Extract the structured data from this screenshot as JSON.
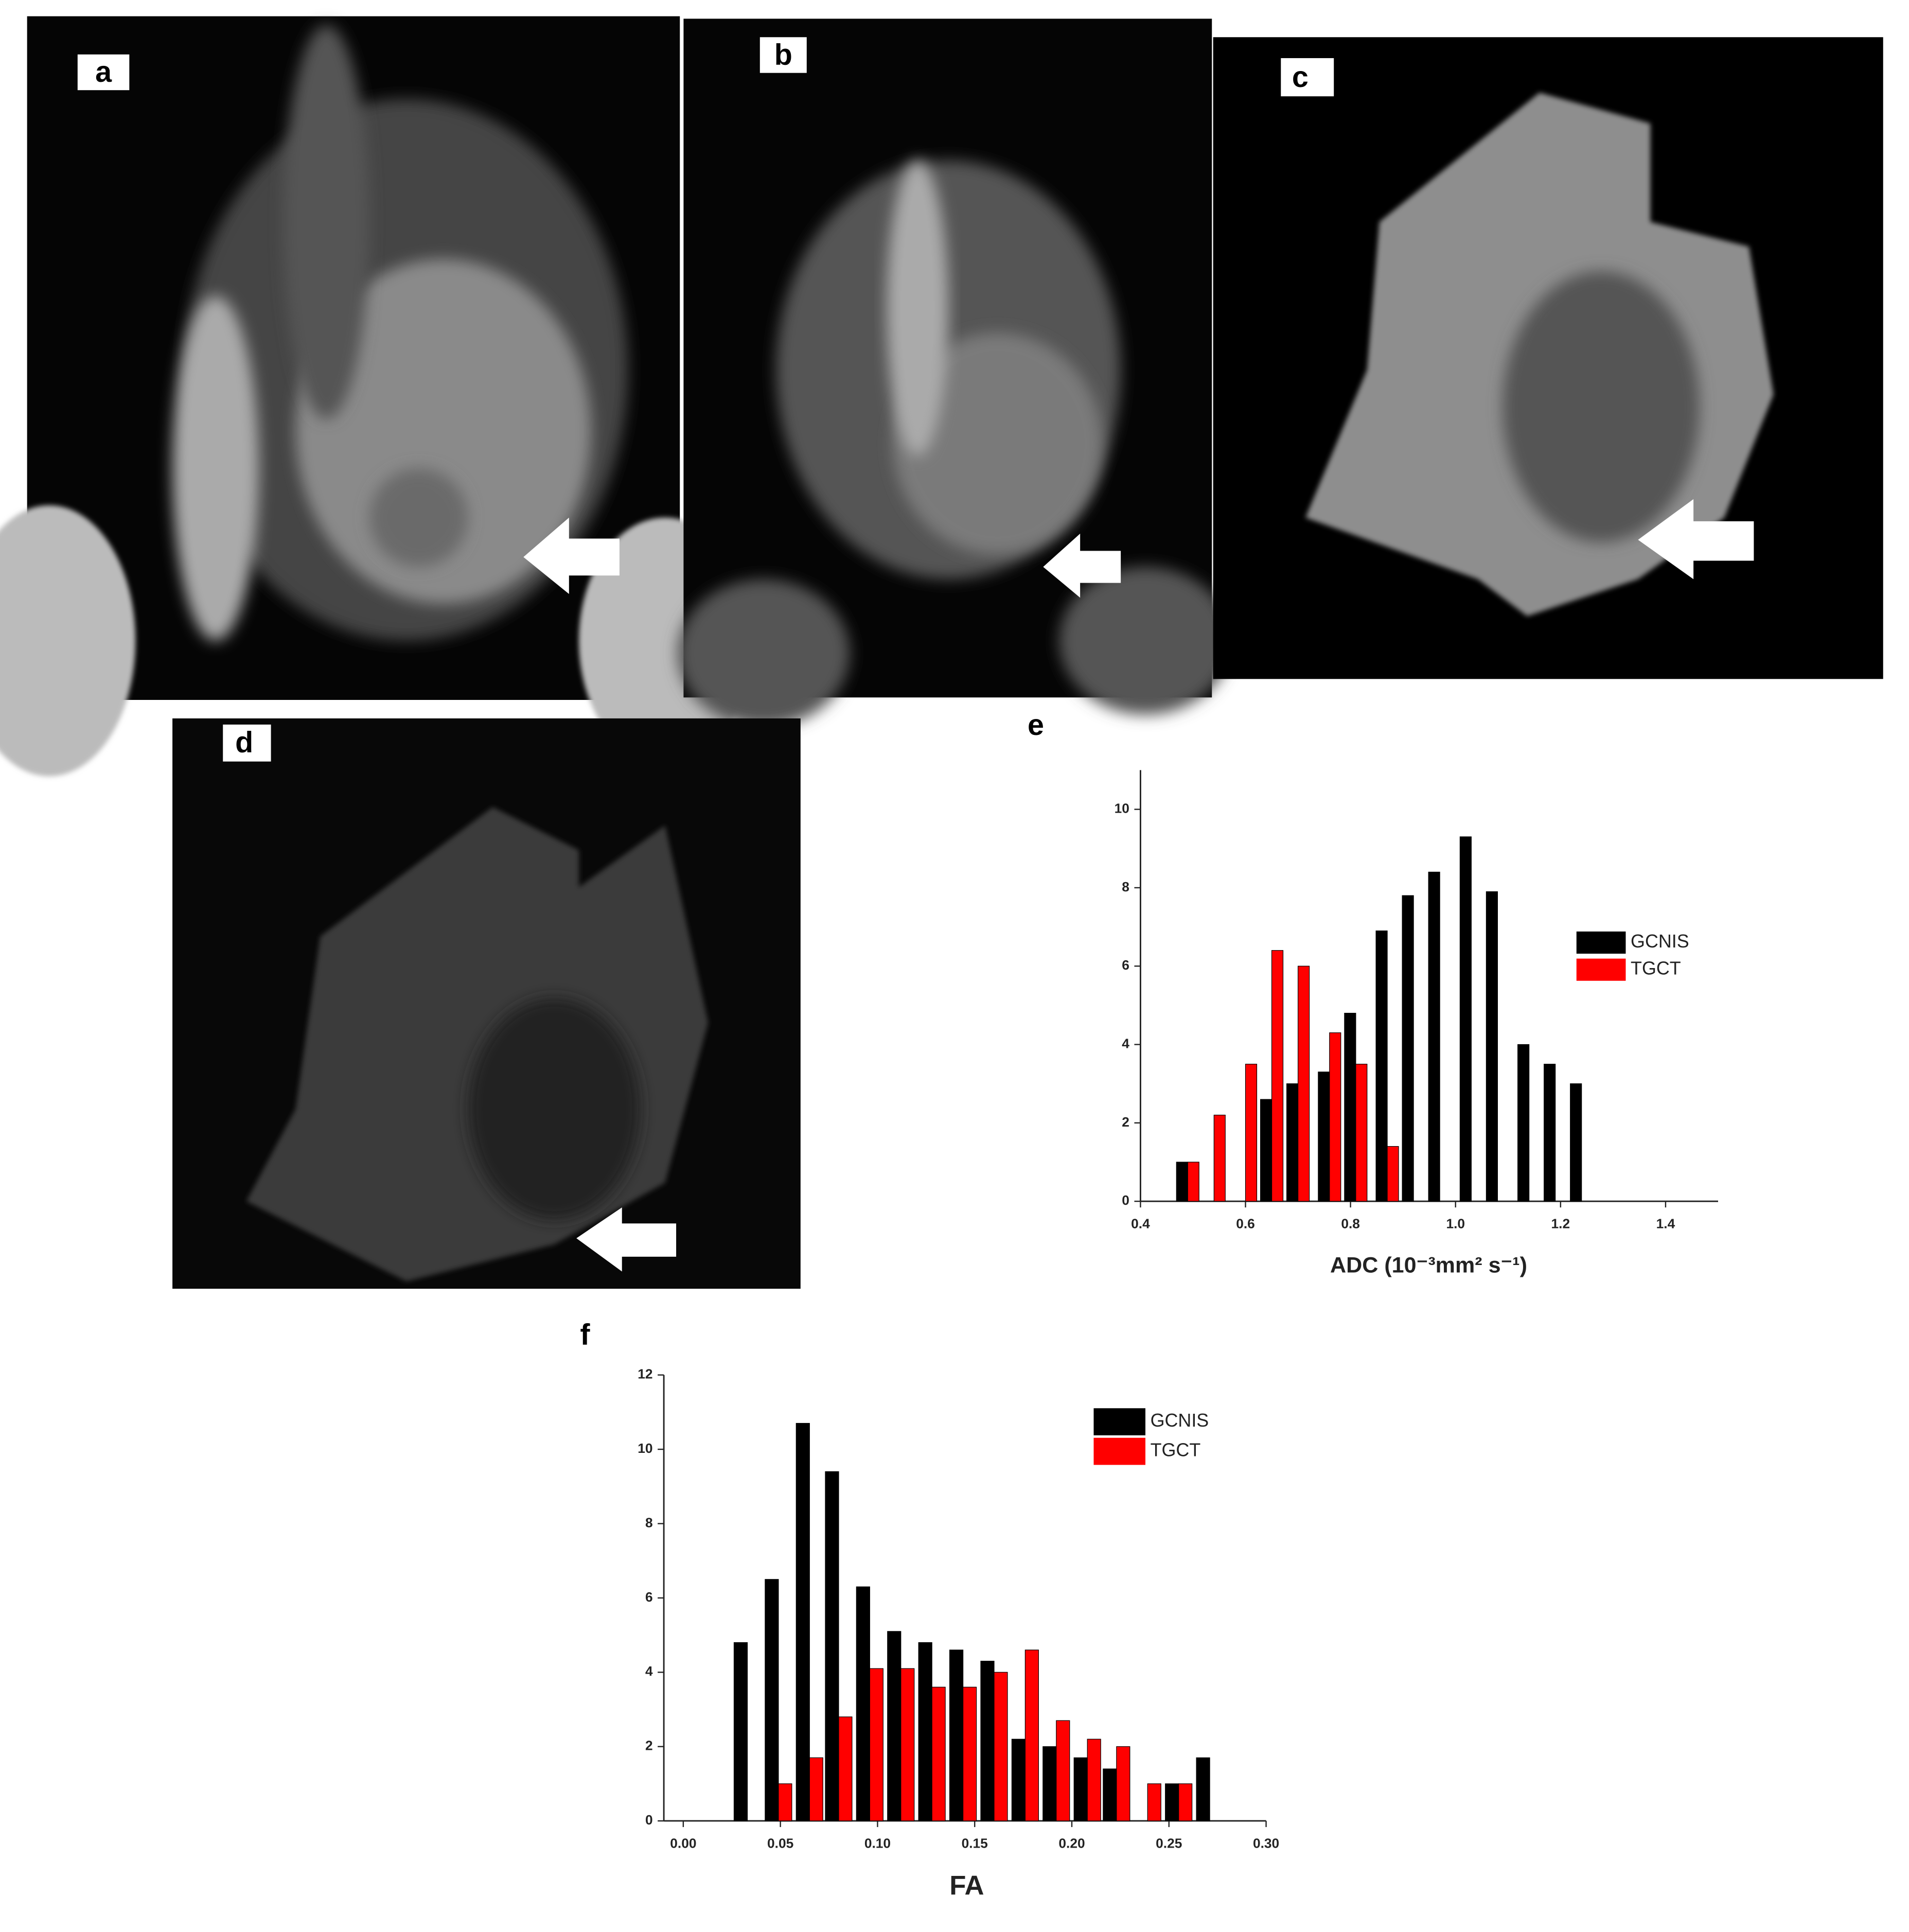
{
  "panels": [
    {
      "label": "a"
    },
    {
      "label": "b"
    },
    {
      "label": "c"
    },
    {
      "label": "d"
    }
  ],
  "chart_data": [
    {
      "type": "bar",
      "title": "e",
      "x_label": "ADC (10⁻³mm² s⁻¹)",
      "x": [
        0.49,
        0.54,
        0.6,
        0.65,
        0.7,
        0.76,
        0.81,
        0.87,
        0.92,
        0.97,
        1.03,
        1.08,
        1.14,
        1.19,
        1.24
      ],
      "series": [
        {
          "name": "GCNIS",
          "color": "#000000",
          "values": [
            1.0,
            null,
            null,
            2.6,
            3.0,
            3.3,
            4.8,
            6.9,
            7.8,
            8.4,
            9.3,
            7.9,
            4.0,
            3.5,
            3.0
          ]
        },
        {
          "name": "TGCT",
          "color": "#ff0000",
          "values": [
            1.0,
            2.2,
            3.5,
            6.4,
            6.0,
            4.3,
            3.5,
            1.4,
            null,
            null,
            null,
            null,
            null,
            null,
            null
          ]
        }
      ],
      "xlim": [
        0.4,
        1.5
      ],
      "ylim": [
        0,
        11
      ],
      "xticks": [
        0.4,
        0.6,
        0.8,
        {
          "value": 1,
          "label": "1.0"
        },
        1.2,
        1.4
      ],
      "yticks": [
        0,
        2,
        4,
        6,
        8,
        10
      ],
      "legend": "right"
    },
    {
      "type": "bar",
      "title": "f",
      "x_label": "FA",
      "x": [
        0.033,
        0.049,
        0.065,
        0.08,
        0.096,
        0.112,
        0.128,
        0.144,
        0.16,
        0.176,
        0.192,
        0.208,
        0.223,
        0.239,
        0.255,
        0.271
      ],
      "series": [
        {
          "name": "GCNIS",
          "color": "#000000",
          "values": [
            4.8,
            6.5,
            10.7,
            9.4,
            6.3,
            5.1,
            4.8,
            4.6,
            4.3,
            2.2,
            2.0,
            1.7,
            1.4,
            null,
            1.0,
            1.7
          ]
        },
        {
          "name": "TGCT",
          "color": "#ff0000",
          "values": [
            null,
            1.0,
            1.7,
            2.8,
            4.1,
            4.1,
            3.6,
            3.6,
            4.0,
            4.6,
            2.7,
            2.2,
            2.0,
            1.0,
            1.0,
            null
          ]
        }
      ],
      "xlim": [
        -0.01,
        0.3
      ],
      "ylim": [
        0,
        12
      ],
      "xticks": [
        {
          "value": 0,
          "label": "0.00"
        },
        {
          "value": 0.05,
          "label": "0.05"
        },
        {
          "value": 0.1,
          "label": "0.10"
        },
        {
          "value": 0.15,
          "label": "0.15"
        },
        {
          "value": 0.2,
          "label": "0.20"
        },
        {
          "value": 0.25,
          "label": "0.25"
        },
        {
          "value": 0.3,
          "label": "0.30"
        }
      ],
      "yticks": [
        0,
        2,
        4,
        6,
        8,
        10,
        12
      ],
      "legend": "upper-right"
    }
  ]
}
